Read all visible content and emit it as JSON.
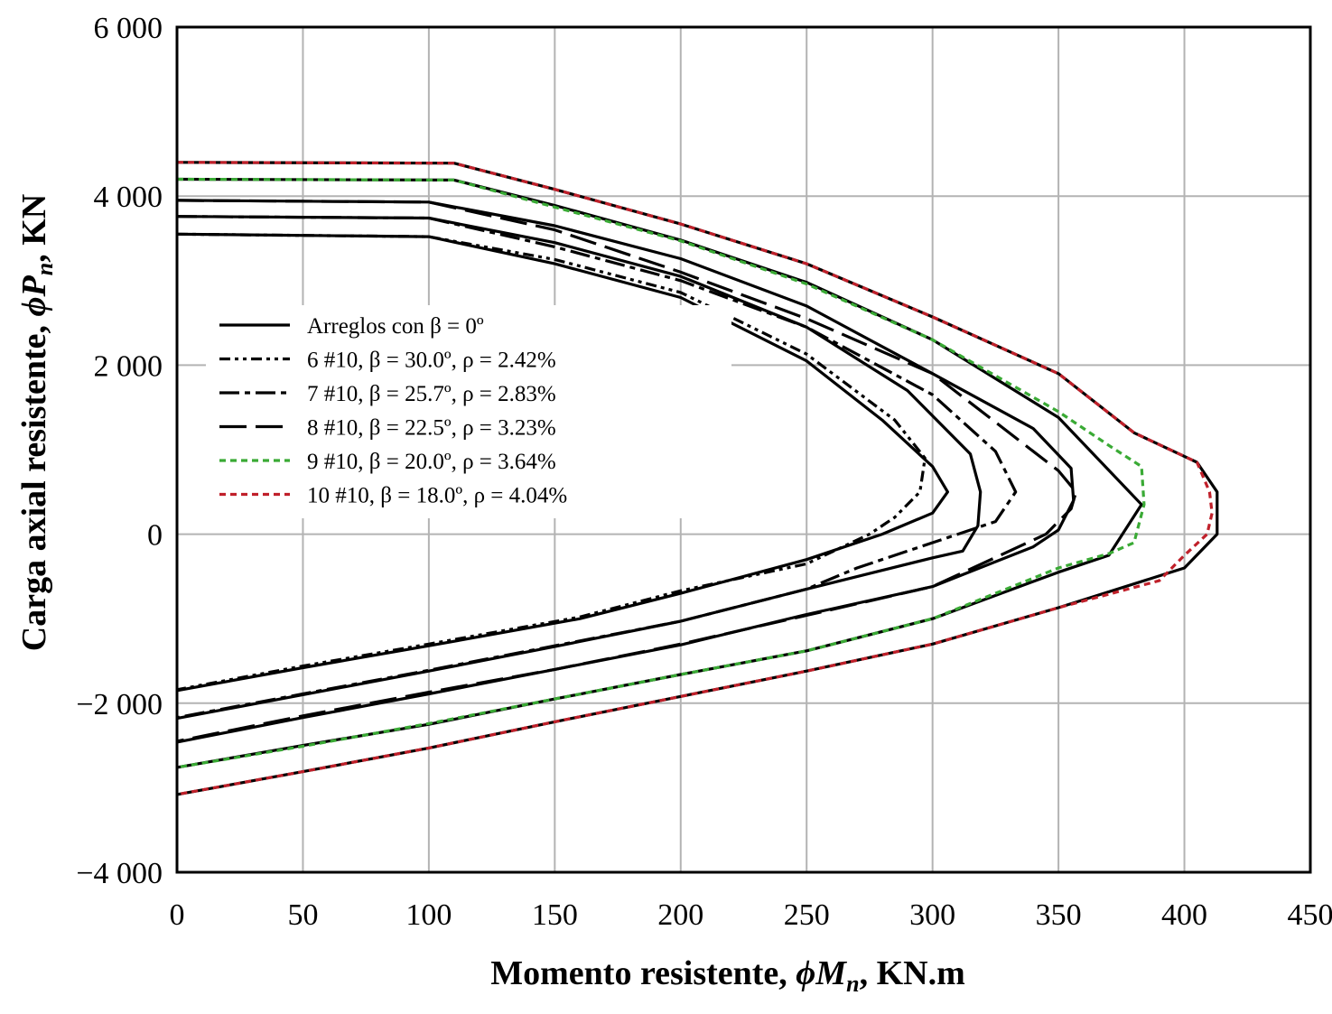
{
  "chart_data": {
    "type": "line",
    "xlabel": {
      "pre": "Momento resistente, ",
      "sym": "ϕ",
      "var": "M",
      "sub": "n",
      "post": ", KN.m"
    },
    "ylabel": {
      "pre": "Carga axial resistente, ",
      "sym": "ϕ",
      "var": "P",
      "sub": "n",
      "post": ", KN"
    },
    "xlim": [
      0,
      450
    ],
    "ylim": [
      -4000,
      6000
    ],
    "x_ticks": [
      0,
      50,
      100,
      150,
      200,
      250,
      300,
      350,
      400,
      450
    ],
    "x_tick_labels": [
      "0",
      "50",
      "100",
      "150",
      "200",
      "250",
      "300",
      "350",
      "400",
      "450"
    ],
    "y_ticks": [
      -4000,
      -2000,
      0,
      2000,
      4000,
      6000
    ],
    "y_tick_labels": [
      "−4 000",
      "−2 000",
      "0",
      "2 000",
      "4 000",
      "6 000"
    ],
    "grid": true,
    "legend_position": "center-left",
    "colors": {
      "black": "#000000",
      "green": "#3aaa35",
      "red": "#c0202a",
      "grid": "#b3b3b3"
    },
    "legend": [
      {
        "text": "Arreglos con β = 0º",
        "style": "solid",
        "color": "#000000"
      },
      {
        "text": "6 #10, β = 30.0º, ρ = 2.42%",
        "style": "dashdotdot",
        "color": "#000000"
      },
      {
        "text": "7 #10, β = 25.7º, ρ = 2.83%",
        "style": "dashdot",
        "color": "#000000"
      },
      {
        "text": "8 #10, β = 22.5º, ρ = 3.23%",
        "style": "longdash",
        "color": "#000000"
      },
      {
        "text": "9 #10, β = 20.0º, ρ = 3.64%",
        "style": "dotted",
        "color": "#3aaa35"
      },
      {
        "text": "10 #10, β = 18.0º, ρ = 4.04%",
        "style": "dotted",
        "color": "#c0202a"
      }
    ],
    "series": [
      {
        "style": "solid",
        "color": "#000000",
        "x": [
          0,
          100,
          150,
          200,
          250,
          280,
          300,
          306,
          300,
          280,
          250,
          200,
          160,
          100,
          50,
          0
        ],
        "y": [
          3550,
          3520,
          3200,
          2800,
          2050,
          1350,
          800,
          500,
          250,
          0,
          -300,
          -700,
          -1000,
          -1320,
          -1580,
          -1850
        ]
      },
      {
        "style": "solid",
        "color": "#000000",
        "x": [
          0,
          100,
          150,
          200,
          250,
          290,
          315,
          319,
          318,
          312,
          300,
          250,
          200,
          150,
          100,
          50,
          0
        ],
        "y": [
          3760,
          3740,
          3450,
          3050,
          2450,
          1700,
          950,
          500,
          100,
          -200,
          -280,
          -650,
          -1030,
          -1330,
          -1620,
          -1900,
          -2180
        ]
      },
      {
        "style": "solid",
        "color": "#000000",
        "x": [
          0,
          100,
          150,
          200,
          250,
          300,
          340,
          355,
          356,
          350,
          340,
          300,
          250,
          200,
          150,
          100,
          50,
          0
        ],
        "y": [
          3950,
          3930,
          3650,
          3260,
          2700,
          1900,
          1250,
          780,
          400,
          50,
          -150,
          -620,
          -950,
          -1310,
          -1600,
          -1890,
          -2170,
          -2460
        ]
      },
      {
        "style": "solid",
        "color": "#000000",
        "x": [
          0,
          110,
          150,
          200,
          250,
          300,
          350,
          383,
          370,
          350,
          300,
          250,
          200,
          150,
          100,
          50,
          0
        ],
        "y": [
          4200,
          4190,
          3890,
          3480,
          2980,
          2300,
          1380,
          350,
          -250,
          -450,
          -1000,
          -1380,
          -1660,
          -1950,
          -2250,
          -2500,
          -2760
        ]
      },
      {
        "style": "solid",
        "color": "#000000",
        "x": [
          0,
          110,
          150,
          200,
          250,
          300,
          350,
          380,
          405,
          413,
          413,
          400,
          350,
          300,
          250,
          200,
          150,
          100,
          50,
          0
        ],
        "y": [
          4400,
          4390,
          4080,
          3670,
          3200,
          2570,
          1900,
          1200,
          850,
          500,
          0,
          -400,
          -870,
          -1300,
          -1620,
          -1920,
          -2220,
          -2530,
          -2810,
          -3080
        ]
      },
      {
        "style": "dashdotdot",
        "color": "#000000",
        "x": [
          0,
          100,
          150,
          200,
          250,
          285,
          297,
          295,
          285,
          275,
          250,
          200,
          160,
          100,
          50,
          0
        ],
        "y": [
          3550,
          3520,
          3250,
          2860,
          2130,
          1350,
          900,
          500,
          200,
          0,
          -350,
          -670,
          -980,
          -1300,
          -1560,
          -1840
        ]
      },
      {
        "style": "dashdot",
        "color": "#000000",
        "x": [
          0,
          100,
          150,
          200,
          250,
          300,
          325,
          333,
          325,
          300,
          270,
          250,
          200,
          150,
          100,
          50,
          0
        ],
        "y": [
          3760,
          3740,
          3400,
          3000,
          2450,
          1650,
          980,
          500,
          150,
          -100,
          -400,
          -650,
          -1030,
          -1320,
          -1610,
          -1890,
          -2170
        ]
      },
      {
        "style": "longdash",
        "color": "#000000",
        "x": [
          0,
          100,
          150,
          200,
          250,
          300,
          350,
          357,
          355,
          345,
          300,
          250,
          200,
          150,
          100,
          50,
          0
        ],
        "y": [
          3950,
          3930,
          3600,
          3100,
          2550,
          1900,
          750,
          500,
          300,
          0,
          -620,
          -960,
          -1300,
          -1600,
          -1870,
          -2150,
          -2450
        ]
      },
      {
        "style": "dotted",
        "color": "#3aaa35",
        "x": [
          0,
          110,
          150,
          200,
          250,
          300,
          350,
          370,
          383,
          384,
          380,
          370,
          350,
          300,
          250,
          200,
          150,
          100,
          50,
          0
        ],
        "y": [
          4200,
          4190,
          3870,
          3470,
          2960,
          2300,
          1450,
          1050,
          800,
          350,
          -100,
          -230,
          -400,
          -1000,
          -1380,
          -1660,
          -1950,
          -2240,
          -2510,
          -2760
        ]
      },
      {
        "style": "dotted",
        "color": "#c0202a",
        "x": [
          0,
          110,
          150,
          200,
          250,
          300,
          350,
          380,
          405,
          410,
          411,
          409,
          400,
          390,
          350,
          300,
          250,
          200,
          150,
          100,
          50,
          0
        ],
        "y": [
          4400,
          4390,
          4080,
          3670,
          3200,
          2570,
          1900,
          1200,
          850,
          500,
          250,
          0,
          -250,
          -550,
          -870,
          -1300,
          -1620,
          -1920,
          -2220,
          -2530,
          -2810,
          -3080
        ]
      }
    ]
  }
}
